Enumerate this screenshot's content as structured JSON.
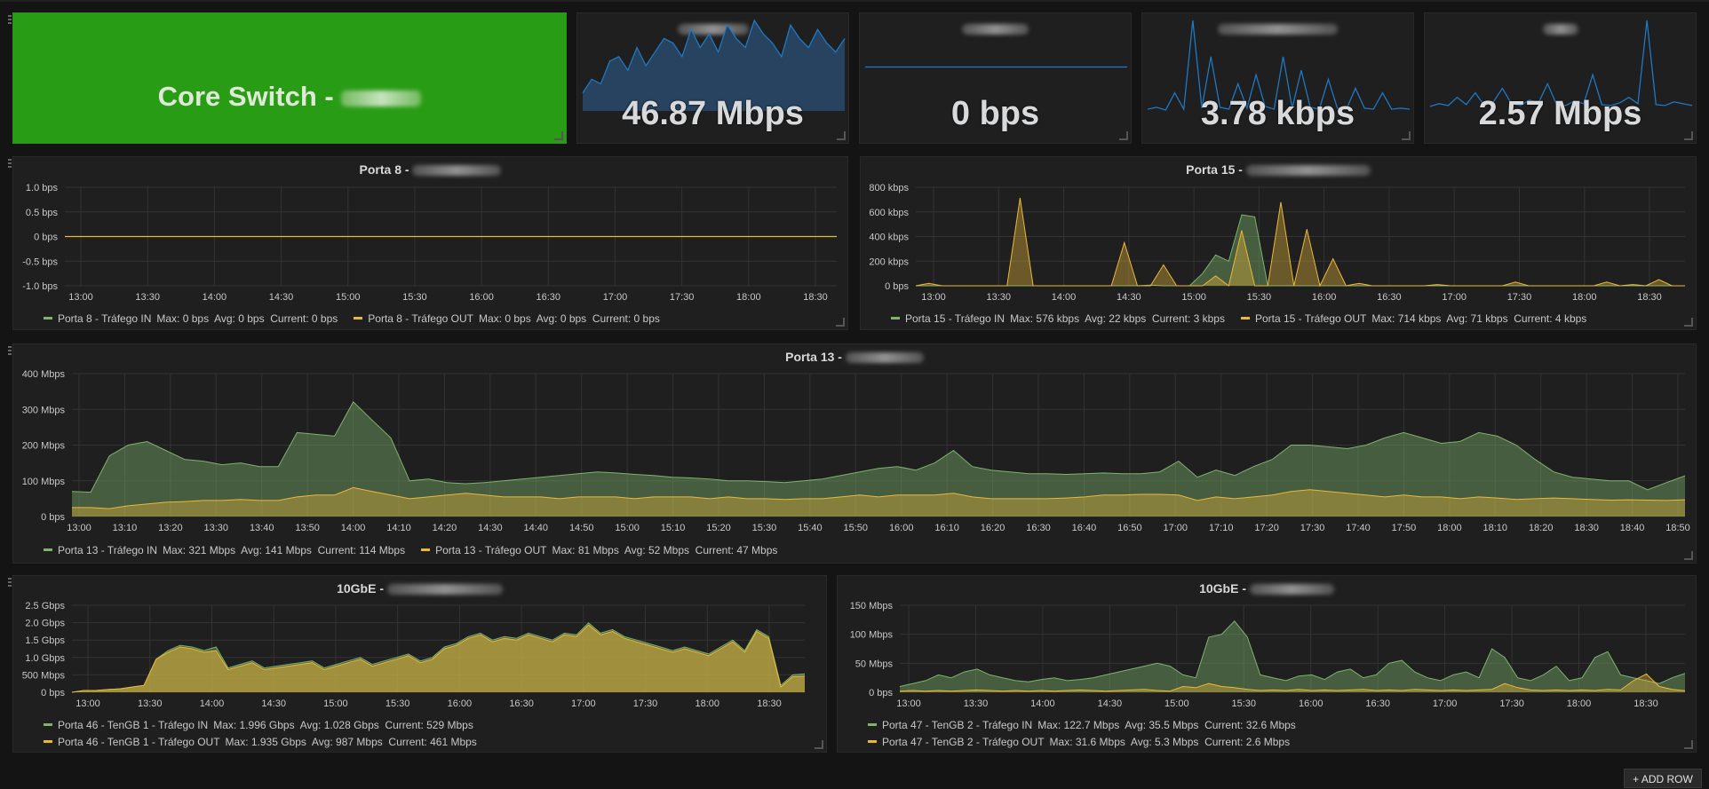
{
  "core_panel": {
    "label": "Core Switch -"
  },
  "stats": [
    {
      "value": "46.87 Mbps",
      "spark": [
        20,
        35,
        30,
        55,
        60,
        45,
        70,
        50,
        65,
        80,
        75,
        60,
        90,
        70,
        85,
        65,
        95,
        80,
        70,
        100,
        85,
        75,
        60,
        95,
        80,
        70,
        90,
        75,
        65,
        80
      ]
    },
    {
      "value": "0 bps",
      "spark": [
        0,
        0,
        0,
        0,
        0,
        0,
        0,
        0,
        0,
        0,
        0,
        0,
        0,
        0,
        0,
        0,
        0,
        0,
        0,
        0
      ]
    },
    {
      "value": "3.78 kbps",
      "spark": [
        2,
        4,
        1,
        20,
        2,
        100,
        3,
        60,
        4,
        2,
        30,
        3,
        40,
        5,
        2,
        60,
        3,
        45,
        4,
        2,
        35,
        3,
        2,
        25,
        3,
        2,
        20,
        2,
        3,
        2
      ]
    },
    {
      "value": "2.57 Mbps",
      "spark": [
        5,
        8,
        6,
        15,
        7,
        20,
        6,
        10,
        25,
        8,
        6,
        12,
        9,
        30,
        7,
        6,
        11,
        8,
        40,
        7,
        6,
        9,
        15,
        8,
        100,
        7,
        6,
        10,
        8,
        6
      ]
    }
  ],
  "graphs": [
    {
      "title": "Porta 8 -",
      "y_ticks": [
        "1.0 bps",
        "0.5 bps",
        "0 bps",
        "-0.5 bps",
        "-1.0 bps"
      ],
      "x_ticks": [
        "13:00",
        "13:30",
        "14:00",
        "14:30",
        "15:00",
        "15:30",
        "16:00",
        "16:30",
        "17:00",
        "17:30",
        "18:00",
        "18:30"
      ],
      "legend": [
        {
          "color": "#7eb26d",
          "label": "Porta 8 - Tráfego IN",
          "stats": "Max: 0 bps  Avg: 0 bps  Current: 0 bps"
        },
        {
          "color": "#eab839",
          "label": "Porta 8 - Tráfego OUT",
          "stats": "Max: 0 bps  Avg: 0 bps  Current: 0 bps"
        }
      ]
    },
    {
      "title": "Porta 15 -",
      "y_ticks": [
        "800 kbps",
        "600 kbps",
        "400 kbps",
        "200 kbps",
        "0 bps"
      ],
      "x_ticks": [
        "13:00",
        "13:30",
        "14:00",
        "14:30",
        "15:00",
        "15:30",
        "16:00",
        "16:30",
        "17:00",
        "17:30",
        "18:00",
        "18:30"
      ],
      "legend": [
        {
          "color": "#7eb26d",
          "label": "Porta 15 - Tráfego IN",
          "stats": "Max: 576 kbps  Avg: 22 kbps  Current: 3 kbps"
        },
        {
          "color": "#eab839",
          "label": "Porta 15 - Tráfego OUT",
          "stats": "Max: 714 kbps  Avg: 71 kbps  Current: 4 kbps"
        }
      ]
    },
    {
      "title": "Porta 13 -",
      "y_ticks": [
        "400 Mbps",
        "300 Mbps",
        "200 Mbps",
        "100 Mbps",
        "0 bps"
      ],
      "x_ticks": [
        "13:00",
        "13:10",
        "13:20",
        "13:30",
        "13:40",
        "13:50",
        "14:00",
        "14:10",
        "14:20",
        "14:30",
        "14:40",
        "14:50",
        "15:00",
        "15:10",
        "15:20",
        "15:30",
        "15:40",
        "15:50",
        "16:00",
        "16:10",
        "16:20",
        "16:30",
        "16:40",
        "16:50",
        "17:00",
        "17:10",
        "17:20",
        "17:30",
        "17:40",
        "17:50",
        "18:00",
        "18:10",
        "18:20",
        "18:30",
        "18:40",
        "18:50"
      ],
      "legend": [
        {
          "color": "#7eb26d",
          "label": "Porta 13 - Tráfego IN",
          "stats": "Max: 321 Mbps  Avg: 141 Mbps  Current: 114 Mbps"
        },
        {
          "color": "#eab839",
          "label": "Porta 13 - Tráfego OUT",
          "stats": "Max: 81 Mbps  Avg: 52 Mbps  Current: 47 Mbps"
        }
      ]
    },
    {
      "title": "10GbE -",
      "y_ticks": [
        "2.5 Gbps",
        "2.0 Gbps",
        "1.5 Gbps",
        "1.0 Gbps",
        "500 Mbps",
        "0 bps"
      ],
      "x_ticks": [
        "13:00",
        "13:30",
        "14:00",
        "14:30",
        "15:00",
        "15:30",
        "16:00",
        "16:30",
        "17:00",
        "17:30",
        "18:00",
        "18:30"
      ],
      "legend": [
        {
          "color": "#7eb26d",
          "label": "Porta 46 - TenGB 1 - Tráfego IN",
          "stats": "Max: 1.996 Gbps  Avg: 1.028 Gbps  Current: 529 Mbps"
        },
        {
          "color": "#eab839",
          "label": "Porta 46 - TenGB 1 - Tráfego OUT",
          "stats": "Max: 1.935 Gbps  Avg: 987 Mbps  Current: 461 Mbps"
        }
      ]
    },
    {
      "title": "10GbE -",
      "y_ticks": [
        "150 Mbps",
        "100 Mbps",
        "50 Mbps",
        "0 bps"
      ],
      "x_ticks": [
        "13:00",
        "13:30",
        "14:00",
        "14:30",
        "15:00",
        "15:30",
        "16:00",
        "16:30",
        "17:00",
        "17:30",
        "18:00",
        "18:30"
      ],
      "legend": [
        {
          "color": "#7eb26d",
          "label": "Porta 47 - TenGB 2 - Tráfego IN",
          "stats": "Max: 122.7 Mbps  Avg: 35.5 Mbps  Current: 32.6 Mbps"
        },
        {
          "color": "#eab839",
          "label": "Porta 47 - TenGB 2 - Tráfego OUT",
          "stats": "Max: 31.6 Mbps  Avg: 5.3 Mbps  Current: 2.6 Mbps"
        }
      ]
    }
  ],
  "series_data": {
    "porta15_in_kbps": [
      0,
      0,
      0,
      0,
      0,
      0,
      0,
      0,
      0,
      0,
      0,
      0,
      0,
      0,
      0,
      0,
      0,
      0,
      5,
      0,
      0,
      0,
      100,
      250,
      200,
      576,
      560,
      0,
      0,
      0,
      0,
      0,
      0,
      0,
      0,
      0,
      0,
      0,
      0,
      0,
      0,
      0,
      0,
      0,
      0,
      0,
      0,
      0,
      0,
      0,
      0,
      0,
      0,
      0,
      0,
      0,
      0,
      0,
      0,
      0
    ],
    "porta15_out_kbps": [
      0,
      20,
      0,
      0,
      0,
      0,
      0,
      0,
      714,
      0,
      0,
      0,
      0,
      0,
      0,
      0,
      350,
      0,
      0,
      170,
      0,
      0,
      0,
      80,
      0,
      450,
      0,
      0,
      680,
      0,
      460,
      0,
      220,
      0,
      20,
      0,
      0,
      0,
      0,
      0,
      10,
      0,
      0,
      0,
      0,
      0,
      30,
      0,
      0,
      0,
      0,
      0,
      0,
      30,
      0,
      10,
      0,
      50,
      0,
      0
    ],
    "porta13_in_mbps": [
      70,
      68,
      170,
      200,
      210,
      185,
      160,
      155,
      145,
      150,
      140,
      140,
      235,
      230,
      225,
      321,
      270,
      220,
      100,
      105,
      95,
      92,
      95,
      100,
      105,
      110,
      115,
      120,
      125,
      122,
      118,
      115,
      110,
      108,
      105,
      100,
      100,
      98,
      95,
      100,
      105,
      115,
      125,
      135,
      140,
      130,
      150,
      185,
      140,
      130,
      125,
      120,
      120,
      118,
      120,
      122,
      120,
      120,
      125,
      155,
      110,
      130,
      115,
      140,
      160,
      200,
      200,
      195,
      190,
      200,
      220,
      235,
      220,
      205,
      210,
      235,
      225,
      200,
      160,
      125,
      110,
      105,
      100,
      100,
      75,
      95,
      114
    ],
    "porta13_out_mbps": [
      25,
      25,
      22,
      30,
      35,
      40,
      42,
      45,
      45,
      48,
      45,
      45,
      55,
      60,
      60,
      81,
      70,
      60,
      50,
      55,
      60,
      65,
      60,
      55,
      55,
      55,
      50,
      55,
      55,
      55,
      50,
      55,
      55,
      55,
      50,
      55,
      50,
      50,
      48,
      50,
      50,
      55,
      60,
      55,
      60,
      60,
      60,
      65,
      55,
      50,
      50,
      50,
      50,
      52,
      55,
      60,
      60,
      62,
      62,
      60,
      45,
      55,
      50,
      55,
      60,
      70,
      75,
      70,
      65,
      60,
      55,
      60,
      55,
      55,
      50,
      55,
      52,
      48,
      50,
      52,
      50,
      48,
      46,
      47,
      46,
      45,
      47
    ],
    "ten1_in_gbps": [
      0,
      0.05,
      0.05,
      0.08,
      0.1,
      0.15,
      0.2,
      0.95,
      1.2,
      1.35,
      1.3,
      1.2,
      1.3,
      0.7,
      0.8,
      0.9,
      0.7,
      0.75,
      0.8,
      0.85,
      0.9,
      0.7,
      0.8,
      0.9,
      1.0,
      0.8,
      0.9,
      1.0,
      1.1,
      0.9,
      1.0,
      1.3,
      1.4,
      1.6,
      1.7,
      1.5,
      1.6,
      1.55,
      1.7,
      1.6,
      1.5,
      1.7,
      1.65,
      1.996,
      1.7,
      1.8,
      1.6,
      1.5,
      1.4,
      1.3,
      1.2,
      1.3,
      1.2,
      1.1,
      1.3,
      1.5,
      1.2,
      1.8,
      1.6,
      0.2,
      0.5,
      0.529
    ],
    "ten1_out_gbps": [
      0,
      0.05,
      0.05,
      0.08,
      0.1,
      0.15,
      0.2,
      0.95,
      1.15,
      1.3,
      1.25,
      1.15,
      1.2,
      0.65,
      0.75,
      0.85,
      0.65,
      0.7,
      0.75,
      0.8,
      0.85,
      0.65,
      0.75,
      0.85,
      0.95,
      0.75,
      0.85,
      0.95,
      1.05,
      0.85,
      0.95,
      1.25,
      1.35,
      1.55,
      1.65,
      1.45,
      1.55,
      1.5,
      1.65,
      1.55,
      1.45,
      1.65,
      1.6,
      1.935,
      1.65,
      1.75,
      1.55,
      1.45,
      1.35,
      1.25,
      1.15,
      1.25,
      1.15,
      1.05,
      1.25,
      1.45,
      1.15,
      1.75,
      1.55,
      0.15,
      0.45,
      0.461
    ],
    "ten2_in_mbps": [
      10,
      15,
      20,
      30,
      25,
      35,
      40,
      30,
      25,
      20,
      18,
      22,
      25,
      20,
      22,
      25,
      30,
      35,
      40,
      45,
      50,
      45,
      30,
      25,
      95,
      100,
      122.7,
      95,
      30,
      25,
      20,
      28,
      30,
      22,
      35,
      40,
      25,
      30,
      50,
      55,
      35,
      25,
      20,
      30,
      35,
      25,
      75,
      60,
      25,
      20,
      30,
      45,
      20,
      25,
      60,
      70,
      30,
      25,
      20,
      15,
      25,
      32.6
    ],
    "ten2_out_mbps": [
      2,
      3,
      2,
      3,
      2,
      3,
      4,
      3,
      2,
      3,
      2,
      3,
      2,
      3,
      4,
      3,
      2,
      3,
      4,
      5,
      3,
      2,
      10,
      8,
      15,
      10,
      8,
      5,
      3,
      4,
      3,
      5,
      3,
      4,
      3,
      4,
      5,
      3,
      4,
      3,
      5,
      4,
      3,
      4,
      3,
      4,
      5,
      15,
      8,
      4,
      3,
      4,
      3,
      4,
      3,
      5,
      4,
      20,
      31.6,
      10,
      5,
      2.6
    ]
  }
}
